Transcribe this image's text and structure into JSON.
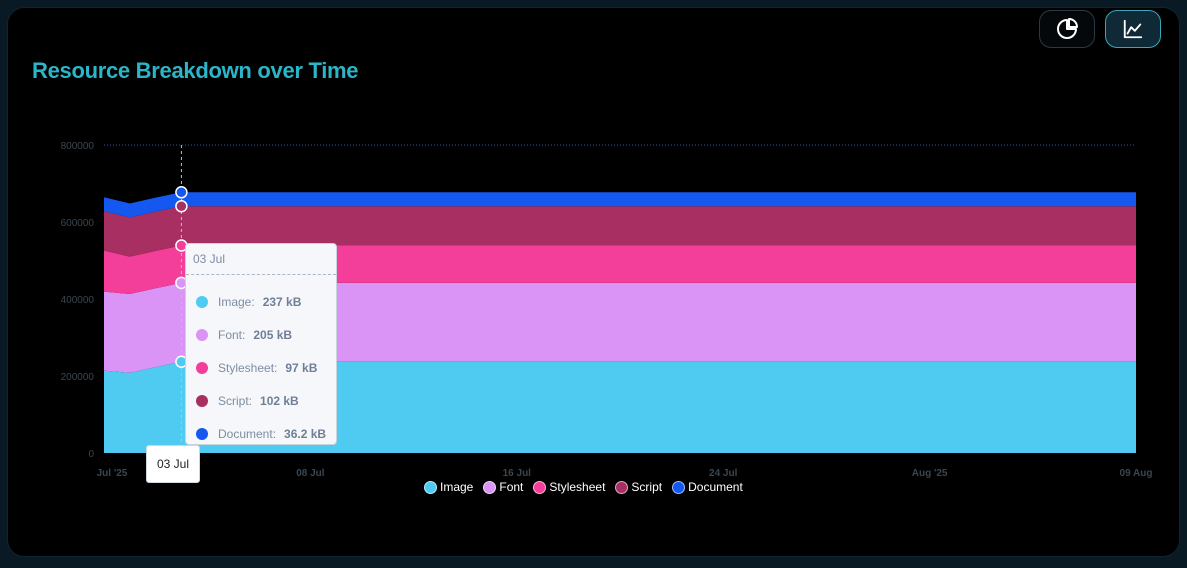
{
  "header": {
    "title": "Resource Breakdown over Time"
  },
  "toolbar": {
    "pie_icon": "pie-chart-icon",
    "area_icon": "area-chart-icon"
  },
  "chart_data": {
    "type": "area",
    "stacked": true,
    "title": "Resource Breakdown over Time",
    "x": [
      "2025-06-30",
      "2025-07-01",
      "2025-07-02",
      "2025-07-03",
      "2025-07-04",
      "2025-07-05",
      "2025-07-06",
      "2025-07-07",
      "2025-07-08",
      "2025-07-09",
      "2025-07-10",
      "2025-07-11",
      "2025-07-12",
      "2025-07-13",
      "2025-07-14",
      "2025-07-15",
      "2025-07-16",
      "2025-07-17",
      "2025-07-18",
      "2025-07-19",
      "2025-07-20",
      "2025-07-21",
      "2025-07-22",
      "2025-07-23",
      "2025-07-24",
      "2025-07-25",
      "2025-07-26",
      "2025-07-27",
      "2025-07-28",
      "2025-07-29",
      "2025-07-30",
      "2025-07-31",
      "2025-08-01",
      "2025-08-02",
      "2025-08-03",
      "2025-08-04",
      "2025-08-05",
      "2025-08-06",
      "2025-08-07",
      "2025-08-08",
      "2025-08-09"
    ],
    "xticks": [
      {
        "x": "2025-06-30",
        "label": "Jul '25"
      },
      {
        "x": "2025-07-08",
        "label": "08 Jul"
      },
      {
        "x": "2025-07-16",
        "label": "16 Jul"
      },
      {
        "x": "2025-07-24",
        "label": "24 Jul"
      },
      {
        "x": "2025-08-01",
        "label": "Aug '25"
      },
      {
        "x": "2025-08-09",
        "label": "09 Aug"
      }
    ],
    "ylim": [
      0,
      800000
    ],
    "yticks": [
      "0",
      "200000",
      "400000",
      "600000",
      "800000"
    ],
    "grid": false,
    "legend_position": "bottom-center",
    "series": [
      {
        "name": "Image",
        "color": "#4fcbf2",
        "values": [
          214000,
          208000,
          223000,
          237000,
          237000,
          237000,
          237000,
          237000,
          237000,
          237000,
          237000,
          237000,
          237000,
          237000,
          237000,
          237000,
          237000,
          237000,
          237000,
          237000,
          237000,
          237000,
          237000,
          237000,
          237000,
          237000,
          237000,
          237000,
          237000,
          237000,
          237000,
          237000,
          237000,
          237000,
          237000,
          237000,
          237000,
          237000,
          237000,
          237000,
          237000
        ]
      },
      {
        "name": "Font",
        "color": "#d994f5",
        "values": [
          205000,
          205000,
          205000,
          205000,
          205000,
          205000,
          205000,
          205000,
          205000,
          205000,
          205000,
          205000,
          205000,
          205000,
          205000,
          205000,
          205000,
          205000,
          205000,
          205000,
          205000,
          205000,
          205000,
          205000,
          205000,
          205000,
          205000,
          205000,
          205000,
          205000,
          205000,
          205000,
          205000,
          205000,
          205000,
          205000,
          205000,
          205000,
          205000,
          205000,
          205000
        ]
      },
      {
        "name": "Stylesheet",
        "color": "#f33f9a",
        "values": [
          107000,
          97000,
          97000,
          97000,
          97000,
          97000,
          97000,
          97000,
          97000,
          97000,
          97000,
          97000,
          97000,
          97000,
          97000,
          97000,
          97000,
          97000,
          97000,
          97000,
          97000,
          97000,
          97000,
          97000,
          97000,
          97000,
          97000,
          97000,
          97000,
          97000,
          97000,
          97000,
          97000,
          97000,
          97000,
          97000,
          97000,
          97000,
          97000,
          97000,
          97000
        ]
      },
      {
        "name": "Script",
        "color": "#a82f62",
        "values": [
          102000,
          102000,
          102000,
          102000,
          102000,
          102000,
          102000,
          102000,
          102000,
          102000,
          102000,
          102000,
          102000,
          102000,
          102000,
          102000,
          102000,
          102000,
          102000,
          102000,
          102000,
          102000,
          102000,
          102000,
          102000,
          102000,
          102000,
          102000,
          102000,
          102000,
          102000,
          102000,
          102000,
          102000,
          102000,
          102000,
          102000,
          102000,
          102000,
          102000,
          102000
        ]
      },
      {
        "name": "Document",
        "color": "#1558f0",
        "values": [
          36200,
          36200,
          36200,
          36200,
          36200,
          36200,
          36200,
          36200,
          36200,
          36200,
          36200,
          36200,
          36200,
          36200,
          36200,
          36200,
          36200,
          36200,
          36200,
          36200,
          36200,
          36200,
          36200,
          36200,
          36200,
          36200,
          36200,
          36200,
          36200,
          36200,
          36200,
          36200,
          36200,
          36200,
          36200,
          36200,
          36200,
          36200,
          36200,
          36200,
          36200
        ]
      }
    ],
    "tooltip": {
      "x": "2025-07-03",
      "date": "03 Jul",
      "rows": [
        {
          "name": "Image",
          "value": "237 kB",
          "color": "#4fcbf2"
        },
        {
          "name": "Font",
          "value": "205 kB",
          "color": "#d994f5"
        },
        {
          "name": "Stylesheet",
          "value": "97 kB",
          "color": "#f33f9a"
        },
        {
          "name": "Script",
          "value": "102 kB",
          "color": "#a82f62"
        },
        {
          "name": "Document",
          "value": "36.2 kB",
          "color": "#1558f0"
        }
      ]
    },
    "crosshair_label": "03 Jul"
  }
}
